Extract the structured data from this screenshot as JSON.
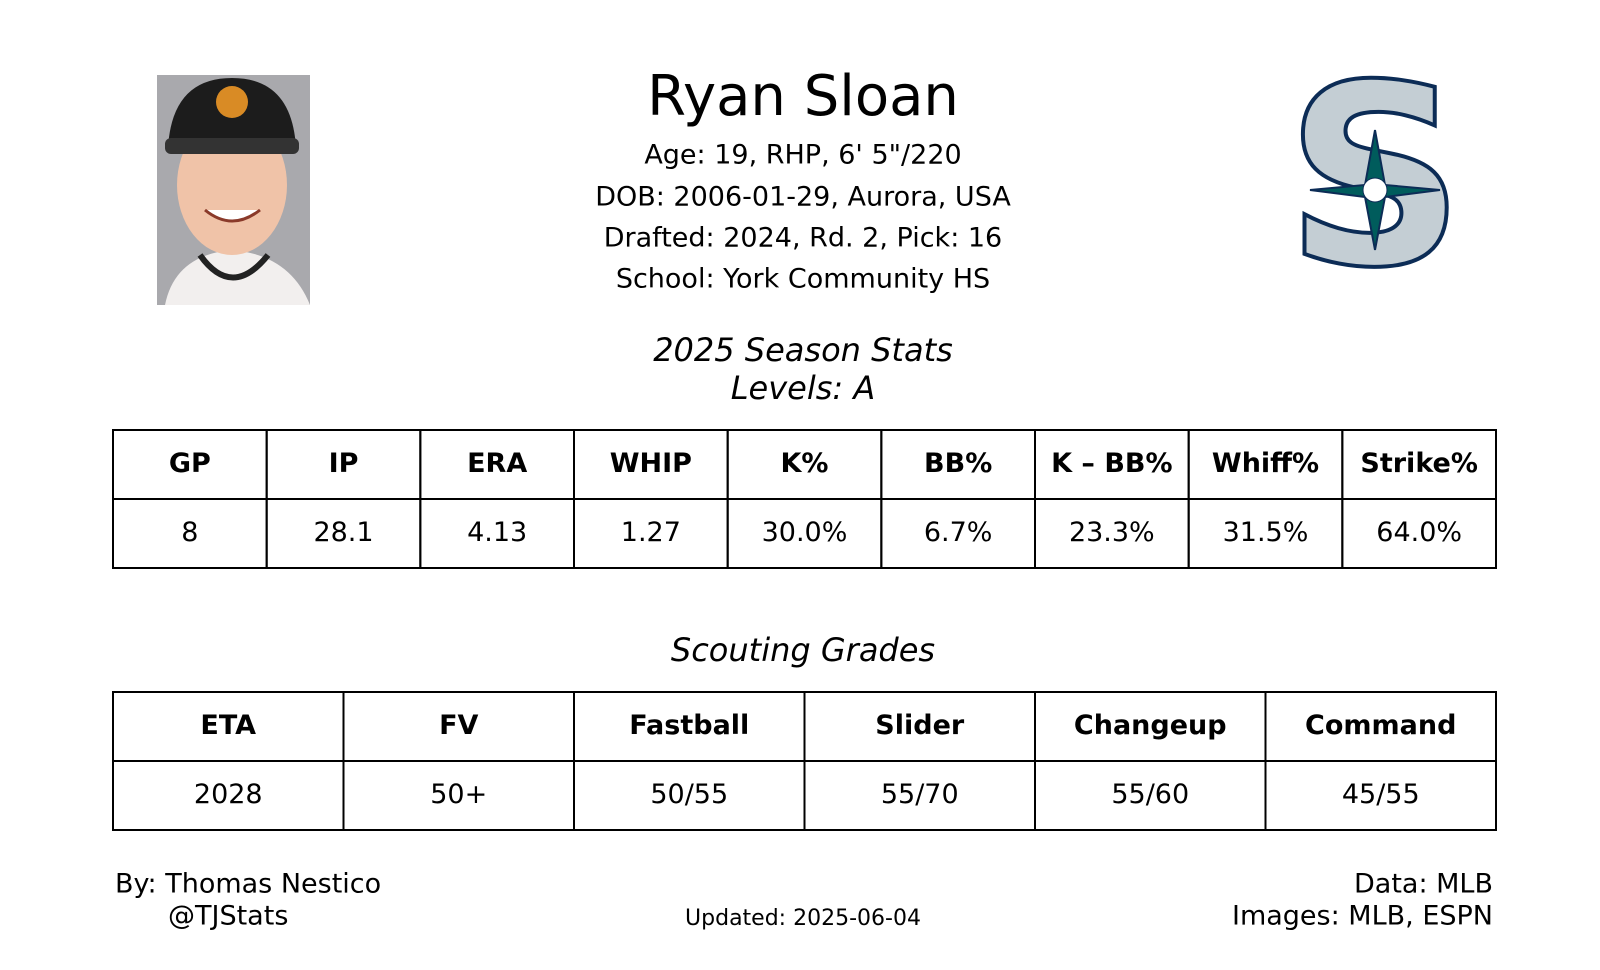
{
  "header": {
    "name": "Ryan Sloan",
    "lines": [
      "Age: 19, RHP, 6' 5\"/220",
      "DOB: 2006-01-29, Aurora, USA",
      "Drafted: 2024, Rd. 2, Pick: 16",
      "School: York Community HS"
    ]
  },
  "stats": {
    "title": "2025 Season Stats",
    "subtitle": "Levels: A",
    "headers": [
      "GP",
      "IP",
      "ERA",
      "WHIP",
      "K%",
      "BB%",
      "K – BB%",
      "Whiff%",
      "Strike%"
    ],
    "values": [
      "8",
      "28.1",
      "4.13",
      "1.27",
      "30.0%",
      "6.7%",
      "23.3%",
      "31.5%",
      "64.0%"
    ]
  },
  "scouting": {
    "title": "Scouting Grades",
    "headers": [
      "ETA",
      "FV",
      "Fastball",
      "Slider",
      "Changeup",
      "Command"
    ],
    "values": [
      "2028",
      "50+",
      "50/55",
      "55/70",
      "55/60",
      "45/55"
    ]
  },
  "footer": {
    "by": "By: Thomas Nestico",
    "handle": "@TJStats",
    "updated": "Updated: 2025-06-04",
    "data": "Data: MLB",
    "images": "Images: MLB, ESPN"
  }
}
